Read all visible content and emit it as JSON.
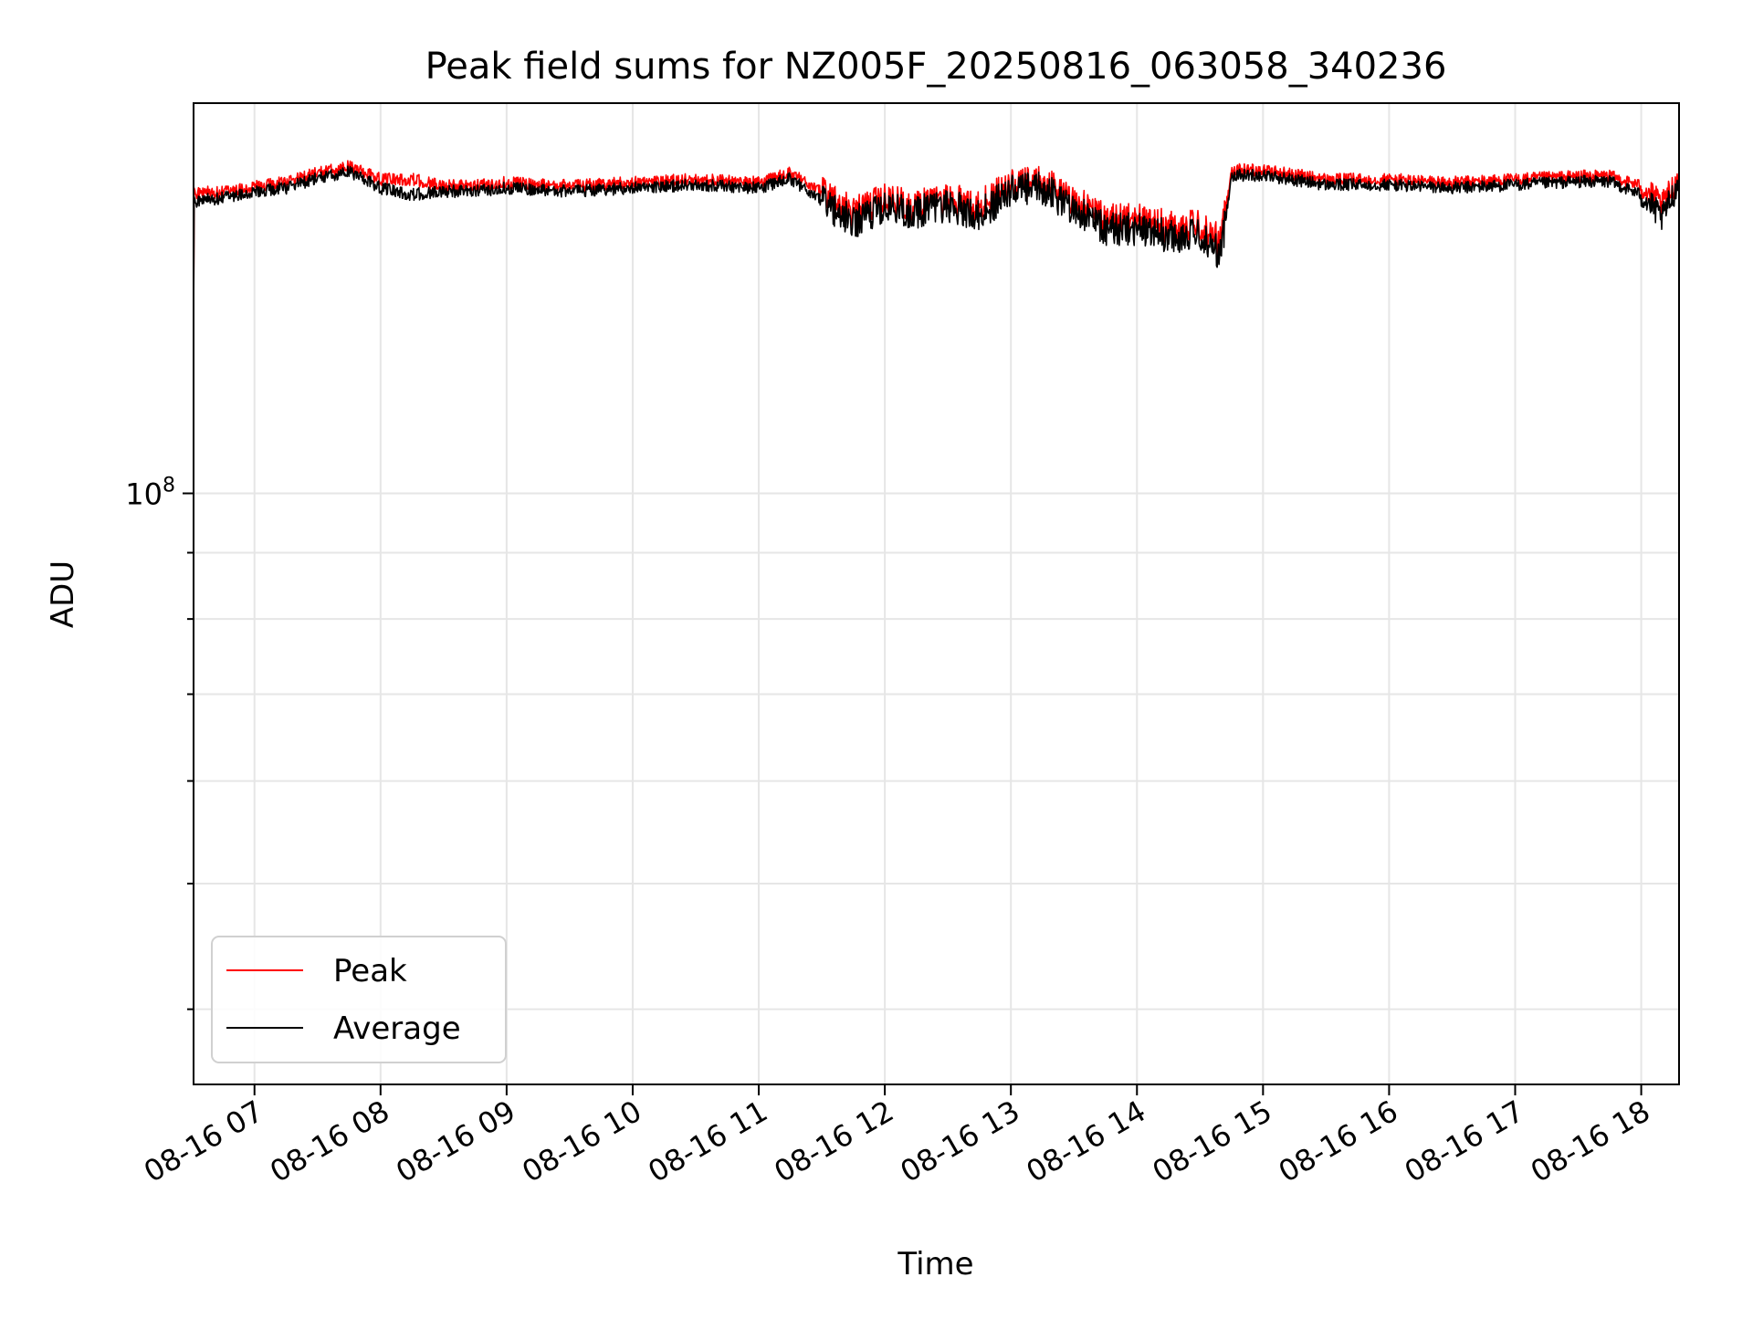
{
  "chart_data": {
    "type": "line",
    "title": "Peak field sums for NZ005F_20250816_063058_340236",
    "xlabel": "Time",
    "ylabel": "ADU",
    "y_scale": "log",
    "grid": true,
    "legend_position": "lower-left",
    "xlim": [
      "2025-08-16 06:31",
      "2025-08-16 18:18"
    ],
    "ylim": [
      35000000,
      200000000
    ],
    "x_ticks": [
      "08-16 07",
      "08-16 08",
      "08-16 09",
      "08-16 10",
      "08-16 11",
      "08-16 12",
      "08-16 13",
      "08-16 14",
      "08-16 15",
      "08-16 16",
      "08-16 17",
      "08-16 18"
    ],
    "y_ticks": [
      {
        "value": 100000000,
        "base": "10",
        "exponent": "8"
      }
    ],
    "y_minor_ticks": [
      40000000,
      50000000,
      60000000,
      70000000,
      80000000,
      90000000
    ],
    "series_time_range": [
      "2025-08-16 06:31",
      "2025-08-16 18:18"
    ],
    "series": [
      {
        "name": "Peak",
        "color": "#ff0000",
        "profile_anchors": [
          [
            "06:31",
            170000000.0
          ],
          [
            "06:45",
            170000000.0
          ],
          [
            "07:00",
            172000000.0
          ],
          [
            "07:15",
            173000000.0
          ],
          [
            "07:30",
            176000000.0
          ],
          [
            "07:45",
            178000000.0
          ],
          [
            "08:00",
            174000000.0
          ],
          [
            "08:15",
            174000000.0
          ],
          [
            "08:30",
            172000000.0
          ],
          [
            "08:45",
            172000000.0
          ],
          [
            "09:00",
            173000000.0
          ],
          [
            "09:30",
            172000000.0
          ],
          [
            "10:00",
            173000000.0
          ],
          [
            "10:30",
            174000000.0
          ],
          [
            "11:00",
            173000000.0
          ],
          [
            "11:15",
            176000000.0
          ],
          [
            "11:30",
            170000000.0
          ],
          [
            "11:45",
            164000000.0
          ],
          [
            "12:00",
            168000000.0
          ],
          [
            "12:15",
            166000000.0
          ],
          [
            "12:30",
            168000000.0
          ],
          [
            "12:45",
            166000000.0
          ],
          [
            "13:00",
            172000000.0
          ],
          [
            "13:15",
            173000000.0
          ],
          [
            "13:30",
            168000000.0
          ],
          [
            "13:45",
            162000000.0
          ],
          [
            "14:00",
            162000000.0
          ],
          [
            "14:15",
            160000000.0
          ],
          [
            "14:30",
            160000000.0
          ],
          [
            "14:40",
            156000000.0
          ],
          [
            "14:45",
            177000000.0
          ],
          [
            "15:00",
            177000000.0
          ],
          [
            "15:30",
            174000000.0
          ],
          [
            "16:00",
            174000000.0
          ],
          [
            "16:30",
            173000000.0
          ],
          [
            "17:00",
            174000000.0
          ],
          [
            "17:30",
            175000000.0
          ],
          [
            "17:45",
            175000000.0
          ],
          [
            "18:00",
            172000000.0
          ],
          [
            "18:10",
            166000000.0
          ],
          [
            "18:18",
            175000000.0
          ]
        ]
      },
      {
        "name": "Average",
        "color": "#000000",
        "profile_anchors": [
          [
            "06:31",
            168000000.0
          ],
          [
            "06:45",
            169000000.0
          ],
          [
            "07:00",
            171000000.0
          ],
          [
            "07:15",
            172000000.0
          ],
          [
            "07:30",
            175000000.0
          ],
          [
            "07:45",
            177000000.0
          ],
          [
            "08:00",
            172000000.0
          ],
          [
            "08:15",
            170000000.0
          ],
          [
            "08:30",
            171000000.0
          ],
          [
            "08:45",
            171000000.0
          ],
          [
            "09:00",
            172000000.0
          ],
          [
            "09:30",
            171000000.0
          ],
          [
            "10:00",
            172000000.0
          ],
          [
            "10:30",
            173000000.0
          ],
          [
            "11:00",
            172000000.0
          ],
          [
            "11:15",
            175000000.0
          ],
          [
            "11:30",
            168000000.0
          ],
          [
            "11:45",
            162000000.0
          ],
          [
            "12:00",
            166000000.0
          ],
          [
            "12:15",
            165000000.0
          ],
          [
            "12:30",
            167000000.0
          ],
          [
            "12:45",
            164000000.0
          ],
          [
            "13:00",
            171000000.0
          ],
          [
            "13:15",
            172000000.0
          ],
          [
            "13:30",
            166000000.0
          ],
          [
            "13:45",
            160000000.0
          ],
          [
            "14:00",
            160000000.0
          ],
          [
            "14:15",
            158000000.0
          ],
          [
            "14:30",
            158000000.0
          ],
          [
            "14:40",
            153000000.0
          ],
          [
            "14:45",
            176000000.0
          ],
          [
            "15:00",
            176000000.0
          ],
          [
            "15:30",
            173000000.0
          ],
          [
            "16:00",
            173000000.0
          ],
          [
            "16:30",
            172000000.0
          ],
          [
            "17:00",
            173000000.0
          ],
          [
            "17:30",
            174000000.0
          ],
          [
            "17:45",
            174000000.0
          ],
          [
            "18:00",
            170000000.0
          ],
          [
            "18:10",
            163000000.0
          ],
          [
            "18:18",
            174000000.0
          ]
        ]
      }
    ]
  }
}
